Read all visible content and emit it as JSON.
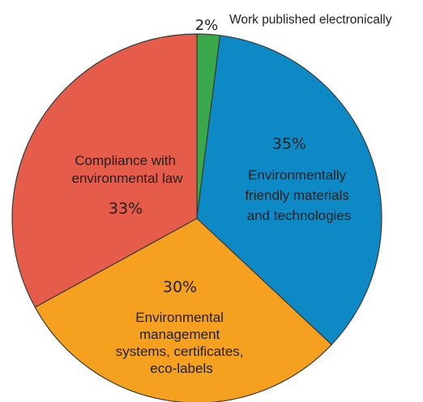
{
  "chart_data": {
    "type": "pie",
    "title": "",
    "slices": [
      {
        "label": "Work published electronically",
        "value": 2,
        "value_label": "2%",
        "color": "#3aa84a"
      },
      {
        "label": "Environmentally friendly materials and technologies",
        "value": 35,
        "value_label": "35%",
        "color": "#0d8ac6"
      },
      {
        "label": "Environmental management systems, certificates, eco-labels",
        "value": 30,
        "value_label": "30%",
        "color": "#f5a01f"
      },
      {
        "label": "Compliance with environmental law",
        "value": 33,
        "value_label": "33%",
        "color": "#e65c4a"
      }
    ]
  }
}
